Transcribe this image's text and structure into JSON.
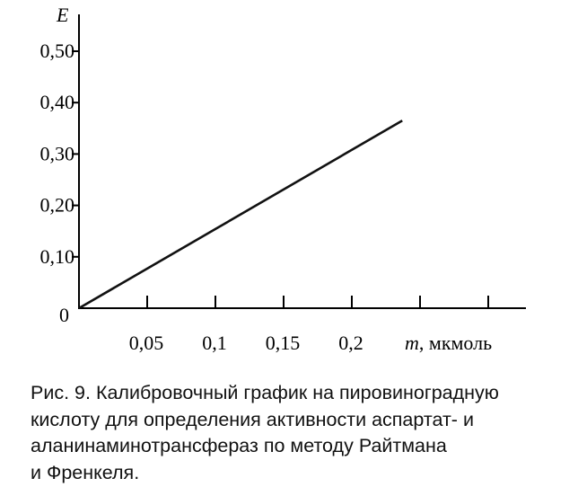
{
  "chart_data": {
    "type": "line",
    "title": "",
    "ylabel": "E",
    "xlabel_var": "m",
    "xlabel_unit": ", мкмоль",
    "xlim": [
      0,
      0.325
    ],
    "ylim": [
      0,
      0.5
    ],
    "x_ticks": [
      0.05,
      0.1,
      0.15,
      0.2,
      0.25,
      0.3
    ],
    "x_tick_labels": [
      "0,05",
      "0,1",
      "0,15",
      "0,2"
    ],
    "y_ticks": [
      0.1,
      0.2,
      0.3,
      0.4,
      0.5
    ],
    "y_tick_labels": [
      "0,10",
      "0,20",
      "0,30",
      "0,40",
      "0,50"
    ],
    "origin_label": "0",
    "grid": false,
    "series": [
      {
        "x": [
          0,
          0.237
        ],
        "y": [
          0,
          0.365
        ],
        "color": "#111111"
      }
    ]
  },
  "caption": {
    "lines": [
      "Рис. 9. Калибровочный график на пировиноградную",
      "кислоту для определения активности аспартат- и",
      "аланинаминотрансфераз по методу Райтмана",
      "и Френкеля."
    ]
  }
}
